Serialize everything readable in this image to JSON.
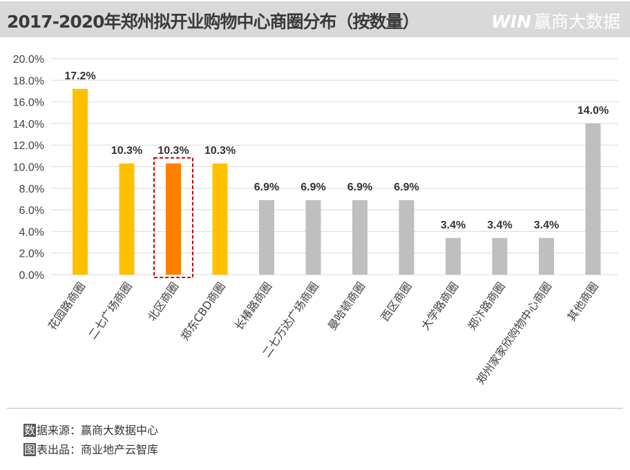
{
  "header": {
    "title": "2017-2020年郑州拟开业购物中心商圈分布（按数量）",
    "logo_mark": "WIN",
    "logo_text": "赢商大数据"
  },
  "chart_data": {
    "type": "bar",
    "title": "2017-2020年郑州拟开业购物中心商圈分布（按数量）",
    "categories": [
      "花园路商圈",
      "二七广场商圈",
      "北区商圈",
      "郑东CBD商圈",
      "长椿路商圈",
      "二七万达广场商圈",
      "曼哈顿商圈",
      "西区商圈",
      "大学路商圈",
      "郑汴路商圈",
      "郑州家家欣购物中心商圈",
      "其他商圈"
    ],
    "values": [
      17.2,
      10.3,
      10.3,
      10.3,
      6.9,
      6.9,
      6.9,
      6.9,
      3.4,
      3.4,
      3.4,
      14.0
    ],
    "data_labels": [
      "17.2%",
      "10.3%",
      "10.3%",
      "10.3%",
      "6.9%",
      "6.9%",
      "6.9%",
      "6.9%",
      "3.4%",
      "3.4%",
      "3.4%",
      "14.0%"
    ],
    "colors": [
      "#ffc000",
      "#ffc000",
      "#ff8000",
      "#ffc000",
      "#bfbfbf",
      "#bfbfbf",
      "#bfbfbf",
      "#bfbfbf",
      "#bfbfbf",
      "#bfbfbf",
      "#bfbfbf",
      "#bfbfbf"
    ],
    "highlighted_category": "北区商圈",
    "highlight_border_color": "#c00000",
    "ylim": [
      0,
      20
    ],
    "y_ticks": [
      "0.0%",
      "2.0%",
      "4.0%",
      "6.0%",
      "8.0%",
      "10.0%",
      "12.0%",
      "14.0%",
      "16.0%",
      "18.0%",
      "20.0%"
    ],
    "grid": true,
    "xlabel": "",
    "ylabel": ""
  },
  "footer": {
    "source_tag": "数",
    "source_text": "据来源：赢商大数据中心",
    "credit_tag": "图",
    "credit_text": "表出品：商业地产云智库"
  }
}
